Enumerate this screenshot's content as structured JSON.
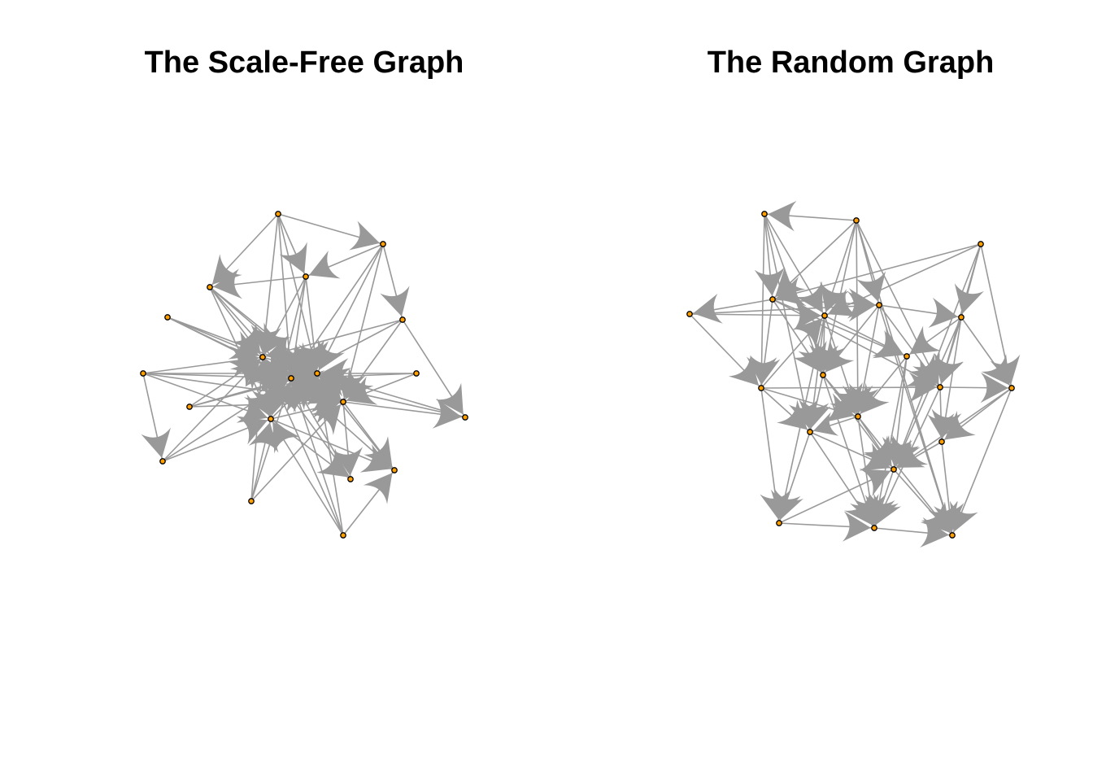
{
  "panels": {
    "left": {
      "title": "The Scale-Free Graph"
    },
    "right": {
      "title": "The Random Graph"
    }
  },
  "style": {
    "edge_color": "#999999",
    "node_fill": "#ff9f00",
    "node_stroke": "#000000",
    "background": "#ffffff"
  }
}
